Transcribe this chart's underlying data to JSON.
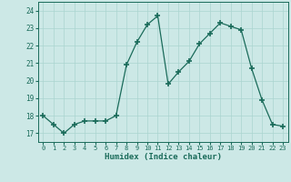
{
  "x": [
    0,
    1,
    2,
    3,
    4,
    5,
    6,
    7,
    8,
    9,
    10,
    11,
    12,
    13,
    14,
    15,
    16,
    17,
    18,
    19,
    20,
    21,
    22,
    23
  ],
  "y": [
    18.0,
    17.5,
    17.0,
    17.5,
    17.7,
    17.7,
    17.7,
    18.0,
    20.9,
    22.2,
    23.2,
    23.7,
    19.8,
    20.5,
    21.1,
    22.1,
    22.7,
    23.3,
    23.1,
    22.9,
    20.7,
    18.9,
    17.5,
    17.4
  ],
  "line_color": "#1a6b5a",
  "marker": "+",
  "marker_size": 4,
  "bg_color": "#cce8e6",
  "grid_color": "#aad4d0",
  "xlabel": "Humidex (Indice chaleur)",
  "ylabel_ticks": [
    17,
    18,
    19,
    20,
    21,
    22,
    23,
    24
  ],
  "xlim": [
    -0.5,
    23.5
  ],
  "ylim": [
    16.5,
    24.5
  ],
  "xtick_labels": [
    "0",
    "1",
    "2",
    "3",
    "4",
    "5",
    "6",
    "7",
    "8",
    "9",
    "10",
    "11",
    "12",
    "13",
    "14",
    "15",
    "16",
    "17",
    "18",
    "19",
    "20",
    "21",
    "22",
    "23"
  ],
  "tick_color": "#1a6b5a",
  "label_color": "#1a6b5a"
}
